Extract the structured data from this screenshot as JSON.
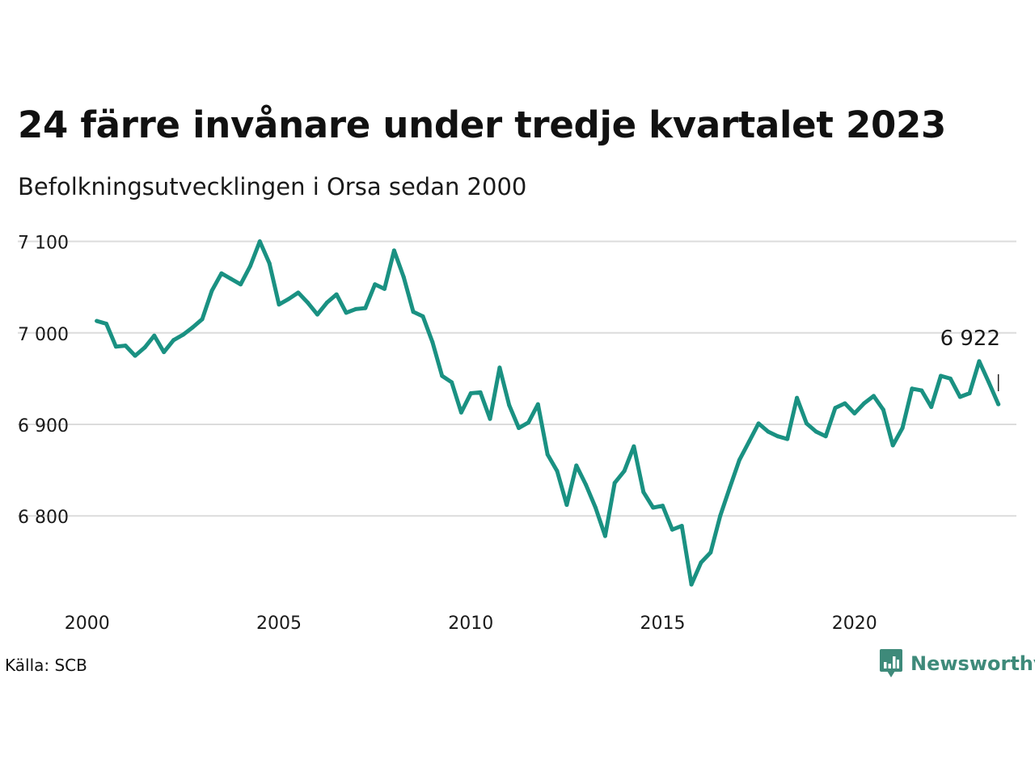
{
  "title": "24 färre invånare under tredje kvartalet 2023",
  "subtitle": "Befolkningsutvecklingen i Orsa sedan 2000",
  "source": "Källa: SCB",
  "brand": {
    "name": "Newsworthy",
    "icon": "newsworthy-bar-chart-icon",
    "color": "#3e8a7a"
  },
  "colors": {
    "line": "#1a9182",
    "grid": "#dcdcdc",
    "text": "#111111"
  },
  "chart_data": {
    "type": "line",
    "title": "24 färre invånare under tredje kvartalet 2023",
    "subtitle": "Befolkningsutvecklingen i Orsa sedan 2000",
    "xlabel": "",
    "ylabel": "",
    "x_ticks": [
      {
        "value": 2000,
        "label": "2000"
      },
      {
        "value": 2005,
        "label": "2005"
      },
      {
        "value": 2010,
        "label": "2010"
      },
      {
        "value": 2015,
        "label": "2015"
      },
      {
        "value": 2020,
        "label": "2020"
      }
    ],
    "y_ticks": [
      {
        "value": 6800,
        "label": "6 800"
      },
      {
        "value": 6900,
        "label": "6 900"
      },
      {
        "value": 7000,
        "label": "7 000"
      },
      {
        "value": 7100,
        "label": "7 100"
      }
    ],
    "xlim": [
      1999.92,
      2024.22
    ],
    "ylim": [
      6703,
      7112
    ],
    "grid": true,
    "legend": "none",
    "last_value_label": "6 922",
    "series": [
      {
        "points": [
          [
            2000.25,
            7013
          ],
          [
            2000.5,
            7010
          ],
          [
            2000.75,
            6985
          ],
          [
            2001.0,
            6986
          ],
          [
            2001.25,
            6975
          ],
          [
            2001.5,
            6984
          ],
          [
            2001.75,
            6997
          ],
          [
            2002.0,
            6979
          ],
          [
            2002.25,
            6992
          ],
          [
            2002.5,
            6998
          ],
          [
            2002.75,
            7006
          ],
          [
            2003.0,
            7015
          ],
          [
            2003.25,
            7046
          ],
          [
            2003.5,
            7065
          ],
          [
            2003.75,
            7059
          ],
          [
            2004.0,
            7053
          ],
          [
            2004.25,
            7073
          ],
          [
            2004.5,
            7100
          ],
          [
            2004.75,
            7076
          ],
          [
            2005.0,
            7031
          ],
          [
            2005.25,
            7037
          ],
          [
            2005.5,
            7044
          ],
          [
            2005.75,
            7033
          ],
          [
            2006.0,
            7020
          ],
          [
            2006.25,
            7033
          ],
          [
            2006.5,
            7042
          ],
          [
            2006.75,
            7022
          ],
          [
            2007.0,
            7026
          ],
          [
            2007.25,
            7027
          ],
          [
            2007.5,
            7053
          ],
          [
            2007.75,
            7048
          ],
          [
            2008.0,
            7090
          ],
          [
            2008.25,
            7061
          ],
          [
            2008.5,
            7023
          ],
          [
            2008.75,
            7018
          ],
          [
            2009.0,
            6990
          ],
          [
            2009.25,
            6953
          ],
          [
            2009.5,
            6946
          ],
          [
            2009.75,
            6913
          ],
          [
            2010.0,
            6934
          ],
          [
            2010.25,
            6935
          ],
          [
            2010.5,
            6906
          ],
          [
            2010.75,
            6962
          ],
          [
            2011.0,
            6921
          ],
          [
            2011.25,
            6896
          ],
          [
            2011.5,
            6902
          ],
          [
            2011.75,
            6922
          ],
          [
            2012.0,
            6867
          ],
          [
            2012.25,
            6849
          ],
          [
            2012.5,
            6812
          ],
          [
            2012.75,
            6855
          ],
          [
            2013.0,
            6834
          ],
          [
            2013.25,
            6809
          ],
          [
            2013.5,
            6778
          ],
          [
            2013.75,
            6836
          ],
          [
            2014.0,
            6849
          ],
          [
            2014.25,
            6876
          ],
          [
            2014.5,
            6826
          ],
          [
            2014.75,
            6809
          ],
          [
            2015.0,
            6811
          ],
          [
            2015.25,
            6785
          ],
          [
            2015.5,
            6789
          ],
          [
            2015.75,
            6725
          ],
          [
            2016.0,
            6749
          ],
          [
            2016.25,
            6760
          ],
          [
            2016.5,
            6800
          ],
          [
            2016.75,
            6831
          ],
          [
            2017.0,
            6861
          ],
          [
            2017.25,
            6881
          ],
          [
            2017.5,
            6901
          ],
          [
            2017.75,
            6892
          ],
          [
            2018.0,
            6887
          ],
          [
            2018.25,
            6884
          ],
          [
            2018.5,
            6929
          ],
          [
            2018.75,
            6901
          ],
          [
            2019.0,
            6892
          ],
          [
            2019.25,
            6887
          ],
          [
            2019.5,
            6918
          ],
          [
            2019.75,
            6923
          ],
          [
            2020.0,
            6912
          ],
          [
            2020.25,
            6923
          ],
          [
            2020.5,
            6931
          ],
          [
            2020.75,
            6916
          ],
          [
            2021.0,
            6877
          ],
          [
            2021.25,
            6896
          ],
          [
            2021.5,
            6939
          ],
          [
            2021.75,
            6937
          ],
          [
            2022.0,
            6919
          ],
          [
            2022.25,
            6953
          ],
          [
            2022.5,
            6950
          ],
          [
            2022.75,
            6930
          ],
          [
            2023.0,
            6934
          ],
          [
            2023.25,
            6969
          ],
          [
            2023.5,
            6946
          ],
          [
            2023.75,
            6922
          ]
        ]
      }
    ]
  }
}
